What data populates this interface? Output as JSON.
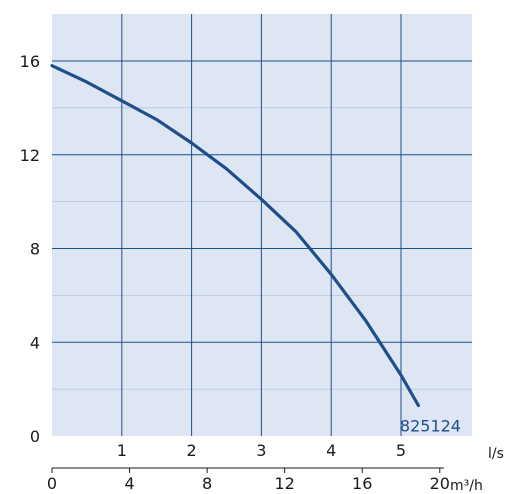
{
  "chart_data": {
    "type": "line",
    "title": "",
    "xlabel": "",
    "ylabel": "",
    "x_unit_primary": "l/s",
    "x_unit_secondary": "m³/h",
    "xlim": [
      0,
      5.5
    ],
    "ylim": [
      0,
      17.5
    ],
    "x_ticks_primary": [
      "1",
      "2",
      "3",
      "4",
      "5"
    ],
    "x_tick_values_primary": [
      1,
      2,
      3,
      4,
      5
    ],
    "x_ticks_secondary": [
      "0",
      "4",
      "8",
      "12",
      "16",
      "20"
    ],
    "x_tick_values_secondary_m3h": [
      0,
      4,
      8,
      12,
      16,
      20
    ],
    "y_ticks": [
      "0",
      "4",
      "8",
      "12",
      "16"
    ],
    "y_tick_values": [
      0,
      4,
      8,
      12,
      16
    ],
    "y_minor_grid": [
      2,
      6,
      10,
      14
    ],
    "grid": true,
    "background_color": "#dde6f2",
    "grid_color": "#1f4e8c",
    "series": [
      {
        "name": "825124",
        "color": "#1f4e8c",
        "x": [
          0,
          0.5,
          1,
          1.5,
          2,
          2.5,
          3,
          3.5,
          4,
          4.5,
          5,
          5.25
        ],
        "y": [
          15.8,
          15.1,
          14.3,
          13.5,
          12.5,
          11.4,
          10.1,
          8.7,
          6.9,
          4.9,
          2.6,
          1.3
        ]
      }
    ]
  }
}
